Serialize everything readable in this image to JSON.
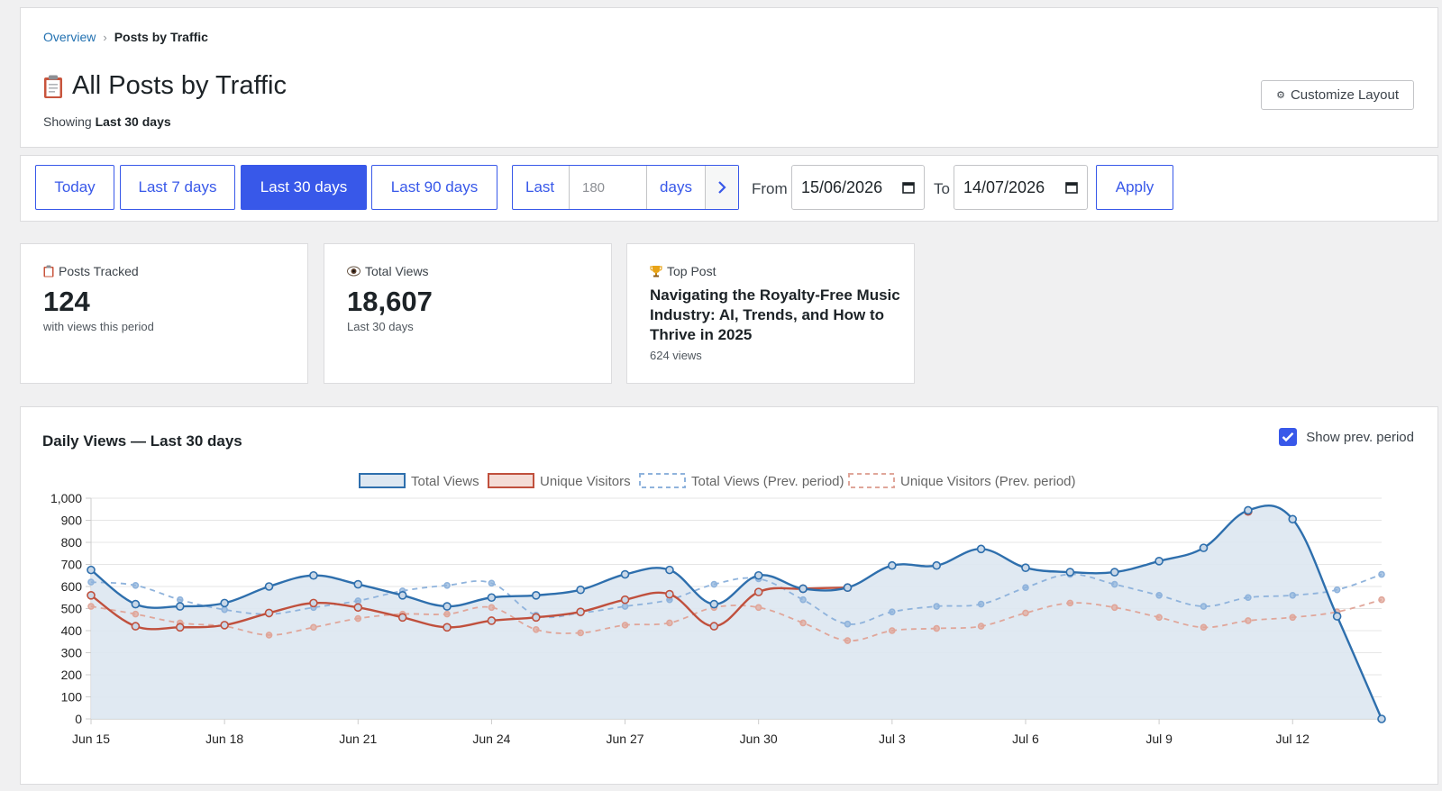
{
  "breadcrumb": {
    "parent": "Overview",
    "current": "Posts by Traffic"
  },
  "header": {
    "title": "All Posts by Traffic",
    "showing_prefix": "Showing",
    "showing_value": "Last 30 days",
    "customize_label": "Customize Layout"
  },
  "filters": {
    "today": "Today",
    "last7": "Last 7 days",
    "last30": "Last 30 days",
    "last90": "Last 90 days",
    "custom_last": "Last",
    "custom_placeholder": "180",
    "custom_days": "days",
    "from_label": "From",
    "from_value": "15/06/2026",
    "to_label": "To",
    "to_value": "14/07/2026",
    "apply": "Apply",
    "active": "last30"
  },
  "stats": {
    "posts_tracked": {
      "label": "Posts Tracked",
      "value": "124",
      "sub": "with views this period"
    },
    "total_views": {
      "label": "Total Views",
      "value": "18,607",
      "sub": "Last 30 days"
    },
    "top_post": {
      "label": "Top Post",
      "title": "Navigating the Royalty-Free Music Industry: AI, Trends, and How to Thrive in 2025",
      "sub": "624 views"
    }
  },
  "chart_panel": {
    "title": "Daily Views — Last 30 days",
    "show_prev_label": "Show prev. period",
    "show_prev_checked": true
  },
  "colors": {
    "accent": "#3858e9",
    "total_views": "#2e6fad",
    "unique_visitors": "#c0503d",
    "total_views_prev": "#8fb3dc",
    "unique_visitors_prev": "#e0a69a",
    "area_fill": "#dde7f1"
  },
  "chart_data": {
    "type": "line",
    "x_tick_labels": [
      "Jun 15",
      "Jun 18",
      "Jun 21",
      "Jun 24",
      "Jun 27",
      "Jun 30",
      "Jul 3",
      "Jul 6",
      "Jul 9",
      "Jul 12"
    ],
    "ylim": [
      0,
      1000
    ],
    "y_ticks": [
      "0",
      "100",
      "200",
      "300",
      "400",
      "500",
      "600",
      "700",
      "800",
      "900",
      "1,000"
    ],
    "grid": true,
    "legend_position": "top-center",
    "series": [
      {
        "name": "Total Views",
        "style": "solid-filled",
        "values": [
          675,
          520,
          510,
          525,
          600,
          650,
          610,
          560,
          510,
          550,
          560,
          585,
          655,
          675,
          520,
          650,
          590,
          595,
          695,
          695,
          770,
          685,
          665,
          665,
          715,
          775,
          945,
          905,
          465,
          0
        ]
      },
      {
        "name": "Unique Visitors",
        "style": "solid",
        "values": [
          560,
          420,
          415,
          425,
          480,
          525,
          505,
          460,
          415,
          445,
          460,
          485,
          540,
          565,
          420,
          575,
          590,
          595,
          null,
          null,
          null,
          null,
          null,
          null,
          null,
          null,
          940,
          null,
          null,
          null
        ]
      },
      {
        "name": "Total Views (Prev. period)",
        "style": "dashed",
        "values": [
          620,
          605,
          540,
          495,
          475,
          505,
          535,
          580,
          605,
          615,
          470,
          480,
          510,
          540,
          610,
          635,
          540,
          430,
          485,
          510,
          520,
          595,
          655,
          610,
          560,
          510,
          550,
          560,
          585,
          655
        ]
      },
      {
        "name": "Unique Visitors (Prev. period)",
        "style": "dashed",
        "values": [
          510,
          475,
          435,
          420,
          380,
          415,
          455,
          475,
          475,
          505,
          405,
          390,
          425,
          435,
          505,
          505,
          435,
          355,
          400,
          410,
          420,
          480,
          525,
          505,
          460,
          415,
          445,
          460,
          485,
          540
        ]
      }
    ]
  }
}
